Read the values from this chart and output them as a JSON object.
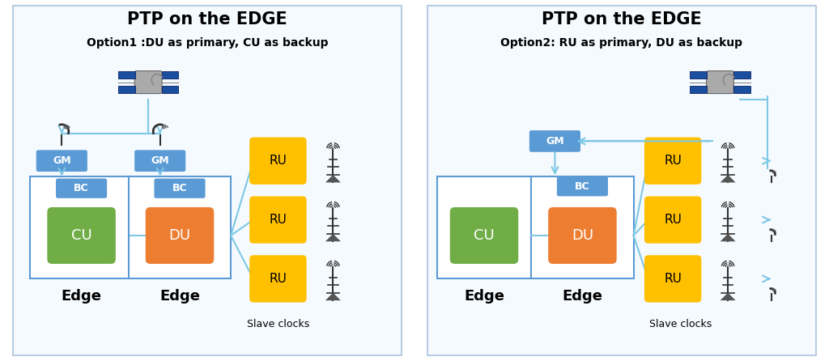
{
  "fig_width": 10.24,
  "fig_height": 4.46,
  "bg": "#ffffff",
  "panel_bg": "#f5faff",
  "border_color": "#b8cce4",
  "arrow_color": "#7ec8e3",
  "gm_color": "#5b9bd5",
  "bc_color": "#5b9bd5",
  "cu_color": "#70ad47",
  "du_color": "#ed7d31",
  "ru_color": "#ffc000",
  "box_edge": "#5b9bd5",
  "p1_title": "PTP on the EDGE",
  "p1_subtitle": "Option1 :DU as primary, CU as backup",
  "p2_title": "PTP on the EDGE",
  "p2_subtitle": "Option2: RU as primary, DU as backup",
  "edge_label": "Edge",
  "slave_label": "Slave clocks"
}
